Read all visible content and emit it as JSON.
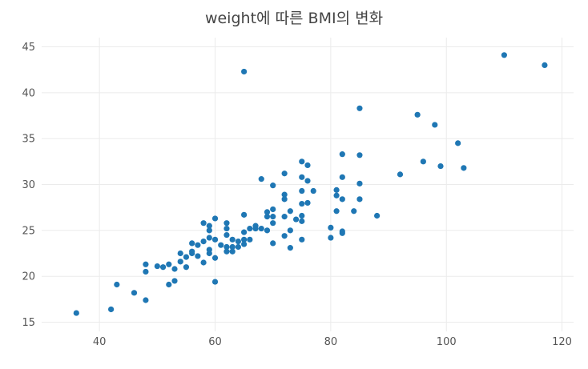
{
  "chart_data": {
    "type": "scatter",
    "title": "weight에 따른 BMI의 변화",
    "xlabel": "",
    "ylabel": "",
    "xlim": [
      30,
      122
    ],
    "ylim": [
      14,
      46
    ],
    "xticks": [
      40,
      60,
      80,
      100,
      120
    ],
    "yticks": [
      15,
      20,
      25,
      30,
      35,
      40,
      45
    ],
    "grid": true,
    "legend": "none",
    "marker_color": "#1f77b4",
    "points": [
      [
        36,
        16.0
      ],
      [
        42,
        16.4
      ],
      [
        43,
        19.1
      ],
      [
        46,
        18.2
      ],
      [
        48,
        17.4
      ],
      [
        48,
        20.5
      ],
      [
        48,
        21.3
      ],
      [
        50,
        21.1
      ],
      [
        51,
        21.0
      ],
      [
        52,
        21.3
      ],
      [
        52,
        19.1
      ],
      [
        53,
        19.5
      ],
      [
        53,
        20.8
      ],
      [
        54,
        21.6
      ],
      [
        54,
        22.5
      ],
      [
        55,
        21.0
      ],
      [
        55,
        22.1
      ],
      [
        56,
        22.5
      ],
      [
        56,
        22.7
      ],
      [
        56,
        23.6
      ],
      [
        57,
        23.4
      ],
      [
        57,
        22.2
      ],
      [
        58,
        21.5
      ],
      [
        58,
        23.8
      ],
      [
        58,
        25.8
      ],
      [
        59,
        25.5
      ],
      [
        59,
        25.0
      ],
      [
        59,
        24.2
      ],
      [
        59,
        22.9
      ],
      [
        59,
        22.5
      ],
      [
        60,
        26.3
      ],
      [
        60,
        24.0
      ],
      [
        60,
        22.0
      ],
      [
        60,
        19.4
      ],
      [
        61,
        23.4
      ],
      [
        62,
        25.8
      ],
      [
        62,
        25.2
      ],
      [
        62,
        24.5
      ],
      [
        62,
        23.2
      ],
      [
        62,
        22.7
      ],
      [
        63,
        24.0
      ],
      [
        63,
        23.2
      ],
      [
        63,
        22.7
      ],
      [
        64,
        23.8
      ],
      [
        64,
        23.2
      ],
      [
        65,
        42.3
      ],
      [
        65,
        26.7
      ],
      [
        65,
        24.8
      ],
      [
        65,
        24.0
      ],
      [
        65,
        23.5
      ],
      [
        66,
        25.2
      ],
      [
        66,
        24.0
      ],
      [
        67,
        25.5
      ],
      [
        67,
        25.2
      ],
      [
        68,
        30.6
      ],
      [
        68,
        25.2
      ],
      [
        69,
        27.0
      ],
      [
        69,
        26.5
      ],
      [
        69,
        25.0
      ],
      [
        70,
        29.9
      ],
      [
        70,
        27.3
      ],
      [
        70,
        26.5
      ],
      [
        70,
        25.8
      ],
      [
        70,
        23.6
      ],
      [
        72,
        31.2
      ],
      [
        72,
        28.9
      ],
      [
        72,
        28.4
      ],
      [
        72,
        26.5
      ],
      [
        72,
        24.4
      ],
      [
        73,
        27.1
      ],
      [
        73,
        25.0
      ],
      [
        73,
        23.1
      ],
      [
        74,
        26.2
      ],
      [
        75,
        32.5
      ],
      [
        75,
        30.8
      ],
      [
        75,
        29.3
      ],
      [
        75,
        27.9
      ],
      [
        75,
        26.6
      ],
      [
        75,
        26.0
      ],
      [
        75,
        24.0
      ],
      [
        76,
        32.1
      ],
      [
        76,
        30.4
      ],
      [
        76,
        28.0
      ],
      [
        77,
        29.3
      ],
      [
        80,
        25.3
      ],
      [
        80,
        24.2
      ],
      [
        81,
        29.4
      ],
      [
        81,
        28.8
      ],
      [
        81,
        27.1
      ],
      [
        82,
        33.3
      ],
      [
        82,
        30.8
      ],
      [
        82,
        28.4
      ],
      [
        82,
        24.9
      ],
      [
        82,
        24.7
      ],
      [
        84,
        27.1
      ],
      [
        85,
        38.3
      ],
      [
        85,
        33.2
      ],
      [
        85,
        30.1
      ],
      [
        85,
        28.4
      ],
      [
        88,
        26.6
      ],
      [
        92,
        31.1
      ],
      [
        95,
        37.6
      ],
      [
        96,
        32.5
      ],
      [
        98,
        36.5
      ],
      [
        99,
        32.0
      ],
      [
        102,
        34.5
      ],
      [
        103,
        31.8
      ],
      [
        110,
        44.1
      ],
      [
        117,
        43.0
      ]
    ]
  }
}
